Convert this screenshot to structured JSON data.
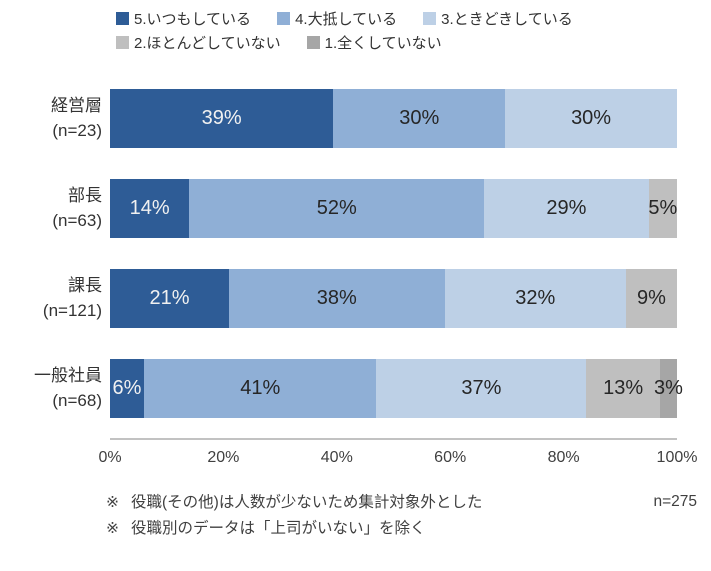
{
  "chart_data": {
    "type": "bar",
    "orientation": "horizontal",
    "stacked": true,
    "unit": "%",
    "xlim": [
      0,
      100
    ],
    "grid": false,
    "legend_position": "top",
    "x_ticks": [
      "0%",
      "20%",
      "40%",
      "60%",
      "80%",
      "100%"
    ],
    "legend": [
      {
        "label": "5.いつもしている",
        "color": "#2E5C96"
      },
      {
        "label": "4.大抵している",
        "color": "#8FAFD6"
      },
      {
        "label": "3.ときどきしている",
        "color": "#BDD0E6"
      },
      {
        "label": "2.ほとんどしていない",
        "color": "#BFBFBF"
      },
      {
        "label": "1.全くしていない",
        "color": "#A6A6A6"
      }
    ],
    "rows": [
      {
        "category": "経営層",
        "n_label": "(n=23)",
        "values": [
          39,
          30,
          30,
          0,
          0
        ]
      },
      {
        "category": "部長",
        "n_label": "(n=63)",
        "values": [
          14,
          52,
          29,
          5,
          0
        ]
      },
      {
        "category": "課長",
        "n_label": "(n=121)",
        "values": [
          21,
          38,
          32,
          9,
          0
        ]
      },
      {
        "category": "一般社員",
        "n_label": "(n=68)",
        "values": [
          6,
          41,
          37,
          13,
          3
        ]
      }
    ],
    "total_n": "n=275"
  },
  "notes": [
    {
      "marker": "※",
      "text": "役職(その他)は人数が少ないため集計対象外とした"
    },
    {
      "marker": "※",
      "text": "役職別のデータは「上司がいない」を除く"
    }
  ]
}
